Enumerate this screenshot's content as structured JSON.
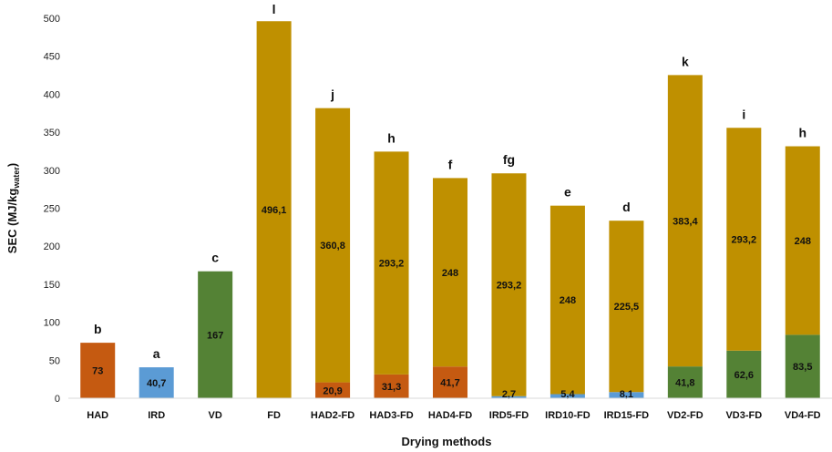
{
  "chart_data": {
    "type": "bar",
    "xlabel": "Drying methods",
    "ylabel_main": "SEC (MJ/kg",
    "ylabel_sub": "water",
    "ylabel_end": ")",
    "ylim": [
      0,
      500
    ],
    "yticks": [
      0,
      50,
      100,
      150,
      200,
      250,
      300,
      350,
      400,
      450,
      500
    ],
    "grid": false,
    "colors": {
      "HAD": "#c55a11",
      "IRD": "#5b9bd5",
      "VD": "#548235",
      "FD": "#bf9000"
    },
    "categories": [
      "HAD",
      "IRD",
      "VD",
      "FD",
      "HAD2-FD",
      "HAD3-FD",
      "HAD4-FD",
      "IRD5-FD",
      "IRD10-FD",
      "IRD15-FD",
      "VD2-FD",
      "VD3-FD",
      "VD4-FD"
    ],
    "bars": [
      {
        "category": "HAD",
        "pretreatment": 73,
        "pre_type": "HAD",
        "pre_label": "73",
        "fd": 0,
        "fd_label": "",
        "letter": "b"
      },
      {
        "category": "IRD",
        "pretreatment": 40.7,
        "pre_type": "IRD",
        "pre_label": "40,7",
        "fd": 0,
        "fd_label": "",
        "letter": "a"
      },
      {
        "category": "VD",
        "pretreatment": 167,
        "pre_type": "VD",
        "pre_label": "167",
        "fd": 0,
        "fd_label": "",
        "letter": "c"
      },
      {
        "category": "FD",
        "pretreatment": 0,
        "pre_type": "FD",
        "pre_label": "",
        "fd": 496.1,
        "fd_label": "496,1",
        "letter": "l"
      },
      {
        "category": "HAD2-FD",
        "pretreatment": 20.9,
        "pre_type": "HAD",
        "pre_label": "20,9",
        "fd": 360.8,
        "fd_label": "360,8",
        "letter": "j"
      },
      {
        "category": "HAD3-FD",
        "pretreatment": 31.3,
        "pre_type": "HAD",
        "pre_label": "31,3",
        "fd": 293.2,
        "fd_label": "293,2",
        "letter": "h"
      },
      {
        "category": "HAD4-FD",
        "pretreatment": 41.7,
        "pre_type": "HAD",
        "pre_label": "41,7",
        "fd": 248,
        "fd_label": "248",
        "letter": "f"
      },
      {
        "category": "IRD5-FD",
        "pretreatment": 2.7,
        "pre_type": "IRD",
        "pre_label": "2,7",
        "fd": 293.2,
        "fd_label": "293,2",
        "letter": "fg"
      },
      {
        "category": "IRD10-FD",
        "pretreatment": 5.4,
        "pre_type": "IRD",
        "pre_label": "5,4",
        "fd": 248,
        "fd_label": "248",
        "letter": "e"
      },
      {
        "category": "IRD15-FD",
        "pretreatment": 8.1,
        "pre_type": "IRD",
        "pre_label": "8,1",
        "fd": 225.5,
        "fd_label": "225,5",
        "letter": "d"
      },
      {
        "category": "VD2-FD",
        "pretreatment": 41.8,
        "pre_type": "VD",
        "pre_label": "41,8",
        "fd": 383.4,
        "fd_label": "383,4",
        "letter": "k"
      },
      {
        "category": "VD3-FD",
        "pretreatment": 62.6,
        "pre_type": "VD",
        "pre_label": "62,6",
        "fd": 293.2,
        "fd_label": "293,2",
        "letter": "i"
      },
      {
        "category": "VD4-FD",
        "pretreatment": 83.5,
        "pre_type": "VD",
        "pre_label": "83,5",
        "fd": 248,
        "fd_label": "248",
        "letter": "h"
      }
    ]
  }
}
